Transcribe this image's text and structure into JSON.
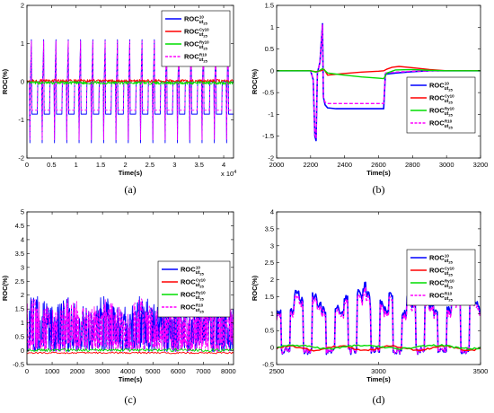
{
  "chart_data": [
    {
      "id": "a",
      "type": "line",
      "caption": "(a)",
      "xlabel": "Time(s)",
      "ylabel": "ROC(%)",
      "xlim": [
        0,
        4.2
      ],
      "ylim": [
        -2,
        2
      ],
      "x_ticks": [
        0,
        0.5,
        1,
        1.5,
        2,
        2.5,
        3,
        3.5,
        4
      ],
      "x_tick_labels": [
        "0",
        "0.5",
        "1",
        "1.5",
        "2",
        "2.5",
        "3",
        "3.5",
        "4"
      ],
      "y_ticks": [
        -2,
        -1,
        0,
        1,
        2
      ],
      "y_tick_labels": [
        "-2",
        "-1",
        "0",
        "1",
        "2"
      ],
      "x_multiplier": "x 10",
      "x_multiplier_exp": "4",
      "legend_position": "top-right",
      "description_of_pattern": "periodic spikes every ~0.25e4 s between -1.6 and 1.1",
      "spike_period": 0.25,
      "spike_high": 1.1,
      "spike_low": -1.6,
      "plateau": -0.85,
      "series": [
        {
          "sup": "10",
          "style": "blue-solid"
        },
        {
          "sup": "Cy10",
          "style": "red-solid"
        },
        {
          "sup": "Ry10",
          "style": "green-solid"
        },
        {
          "sup": "R10",
          "style": "magenta-dashed"
        }
      ]
    },
    {
      "id": "b",
      "type": "line",
      "caption": "(b)",
      "xlabel": "Time(s)",
      "ylabel": "ROC(%)",
      "xlim": [
        2000,
        3200
      ],
      "ylim": [
        -2,
        1.5
      ],
      "x_ticks": [
        2000,
        2200,
        2400,
        2600,
        2800,
        3000,
        3200
      ],
      "x_tick_labels": [
        "2000",
        "2200",
        "2400",
        "2600",
        "2800",
        "3000",
        "3200"
      ],
      "y_ticks": [
        -2,
        -1.5,
        -1,
        -0.5,
        0,
        0.5,
        1,
        1.5
      ],
      "y_tick_labels": [
        "-2",
        "-1.5",
        "-1",
        "-0.5",
        "0",
        "0.5",
        "1",
        "1.5"
      ],
      "legend_position": "right",
      "series": [
        {
          "sup": "10",
          "style": "blue-solid",
          "x": [
            2000,
            2200,
            2215,
            2225,
            2232,
            2240,
            2255,
            2270,
            2275,
            2285,
            2300,
            2350,
            2400,
            2500,
            2630,
            2640,
            2700,
            2800,
            2900,
            3000,
            3200
          ],
          "y": [
            0,
            0,
            -0.2,
            -1.5,
            -1.6,
            -0.05,
            0.2,
            1.08,
            -0.6,
            -0.78,
            -0.85,
            -0.87,
            -0.87,
            -0.87,
            -0.87,
            -0.08,
            -0.05,
            -0.02,
            0,
            0,
            0
          ]
        },
        {
          "sup": "Cy10",
          "style": "red-solid",
          "x": [
            2000,
            2200,
            2230,
            2260,
            2280,
            2300,
            2400,
            2500,
            2600,
            2630,
            2650,
            2680,
            2720,
            2800,
            2900,
            3000,
            3200
          ],
          "y": [
            0,
            0,
            -0.02,
            0,
            0.03,
            -0.1,
            -0.06,
            -0.03,
            -0.01,
            0,
            0.04,
            0.08,
            0.1,
            0.07,
            0.03,
            0,
            0
          ]
        },
        {
          "sup": "Ry10",
          "style": "green-solid",
          "x": [
            2000,
            2200,
            2230,
            2250,
            2270,
            2280,
            2300,
            2400,
            2500,
            2600,
            2630,
            2650,
            2700,
            2800,
            2900,
            3000,
            3200
          ],
          "y": [
            0,
            0,
            -0.03,
            0,
            0.05,
            0.02,
            -0.05,
            -0.1,
            -0.14,
            -0.17,
            -0.18,
            -0.05,
            0.02,
            0.03,
            0.01,
            0,
            0
          ]
        },
        {
          "sup": "R10",
          "style": "magenta-dashed",
          "x": [
            2000,
            2200,
            2215,
            2225,
            2232,
            2240,
            2255,
            2270,
            2275,
            2285,
            2300,
            2400,
            2500,
            2630,
            2640,
            2700,
            2800,
            2900,
            3000,
            3200
          ],
          "y": [
            0,
            0,
            -0.2,
            -1.45,
            -1.55,
            -0.05,
            0.2,
            1.05,
            -0.6,
            -0.72,
            -0.75,
            -0.75,
            -0.75,
            -0.75,
            -0.05,
            -0.03,
            -0.01,
            0,
            0,
            0
          ]
        }
      ]
    },
    {
      "id": "c",
      "type": "line",
      "caption": "(c)",
      "xlabel": "Time(s)",
      "ylabel": "ROC(%)",
      "xlim": [
        0,
        8200
      ],
      "ylim": [
        -0.5,
        5
      ],
      "x_ticks": [
        0,
        1000,
        2000,
        3000,
        4000,
        5000,
        6000,
        7000,
        8000
      ],
      "x_tick_labels": [
        "0",
        "1000",
        "2000",
        "3000",
        "4000",
        "5000",
        "6000",
        "7000",
        "8000"
      ],
      "y_ticks": [
        -0.5,
        0,
        0.5,
        1,
        1.5,
        2,
        2.5,
        3,
        3.5,
        4,
        4.5,
        5
      ],
      "y_tick_labels": [
        "-0.5",
        "0",
        "0.5",
        "1",
        "1.5",
        "2",
        "2.5",
        "3",
        "3.5",
        "4",
        "4.5",
        "5"
      ],
      "legend_position": "right",
      "noise_band": [
        -0.1,
        1.9
      ],
      "series": [
        {
          "sup": "10",
          "style": "blue-solid"
        },
        {
          "sup": "Cy10",
          "style": "red-solid"
        },
        {
          "sup": "Ry10",
          "style": "green-solid"
        },
        {
          "sup": "R10",
          "style": "magenta-dashed"
        }
      ]
    },
    {
      "id": "d",
      "type": "line",
      "caption": "(d)",
      "xlabel": "Time(s)",
      "ylabel": "ROC(%)",
      "xlim": [
        2500,
        3500
      ],
      "ylim": [
        -0.5,
        4
      ],
      "x_ticks": [
        2500,
        3000,
        3500
      ],
      "x_tick_labels": [
        "2500",
        "3000",
        "3500"
      ],
      "y_ticks": [
        -0.5,
        0,
        0.5,
        1,
        1.5,
        2,
        2.5,
        3,
        3.5,
        4
      ],
      "y_tick_labels": [
        "-0.5",
        "0",
        "0.5",
        "1",
        "1.5",
        "2",
        "2.5",
        "3",
        "3.5",
        "4"
      ],
      "legend_position": "right",
      "series": [
        {
          "sup": "10",
          "style": "blue-solid"
        },
        {
          "sup": "Cy10",
          "style": "red-solid"
        },
        {
          "sup": "Ry10",
          "style": "green-solid"
        },
        {
          "sup": "R10",
          "style": "magenta-dashed"
        }
      ]
    }
  ],
  "legend_text": {
    "main": "ROC",
    "sub": "ut",
    "subsub": "25"
  },
  "colors": {
    "blue": "#0000ff",
    "red": "#ff0000",
    "green": "#00dd00",
    "magenta": "#ff00ff",
    "axis": "#000000"
  }
}
